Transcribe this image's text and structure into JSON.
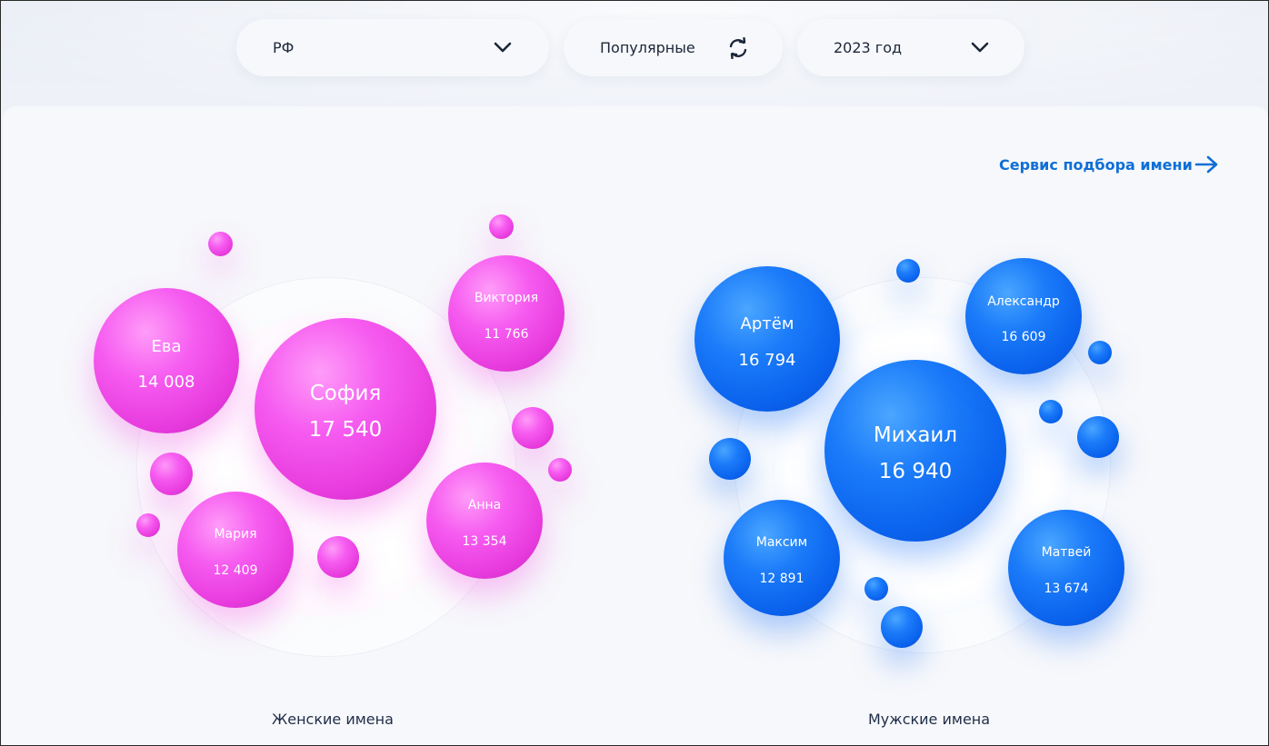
{
  "filters": {
    "region": "РФ",
    "mode": "Популярные",
    "year": "2023 год"
  },
  "service_link": "Сервис подбора имени",
  "colors": {
    "accent": "#0f6fd6",
    "female_ball": "#f65cf0",
    "male_ball": "#1b7bf9"
  },
  "female": {
    "caption": "Женские имена",
    "names": [
      {
        "name": "София",
        "count": "17 540"
      },
      {
        "name": "Ева",
        "count": "14 008"
      },
      {
        "name": "Анна",
        "count": "13 354"
      },
      {
        "name": "Мария",
        "count": "12 409"
      },
      {
        "name": "Виктория",
        "count": "11 766"
      }
    ]
  },
  "male": {
    "caption": "Мужские имена",
    "names": [
      {
        "name": "Михаил",
        "count": "16 940"
      },
      {
        "name": "Артём",
        "count": "16 794"
      },
      {
        "name": "Матвей",
        "count": "13 674"
      },
      {
        "name": "Максим",
        "count": "12 891"
      },
      {
        "name": "Александр",
        "count": "16 609"
      }
    ]
  }
}
